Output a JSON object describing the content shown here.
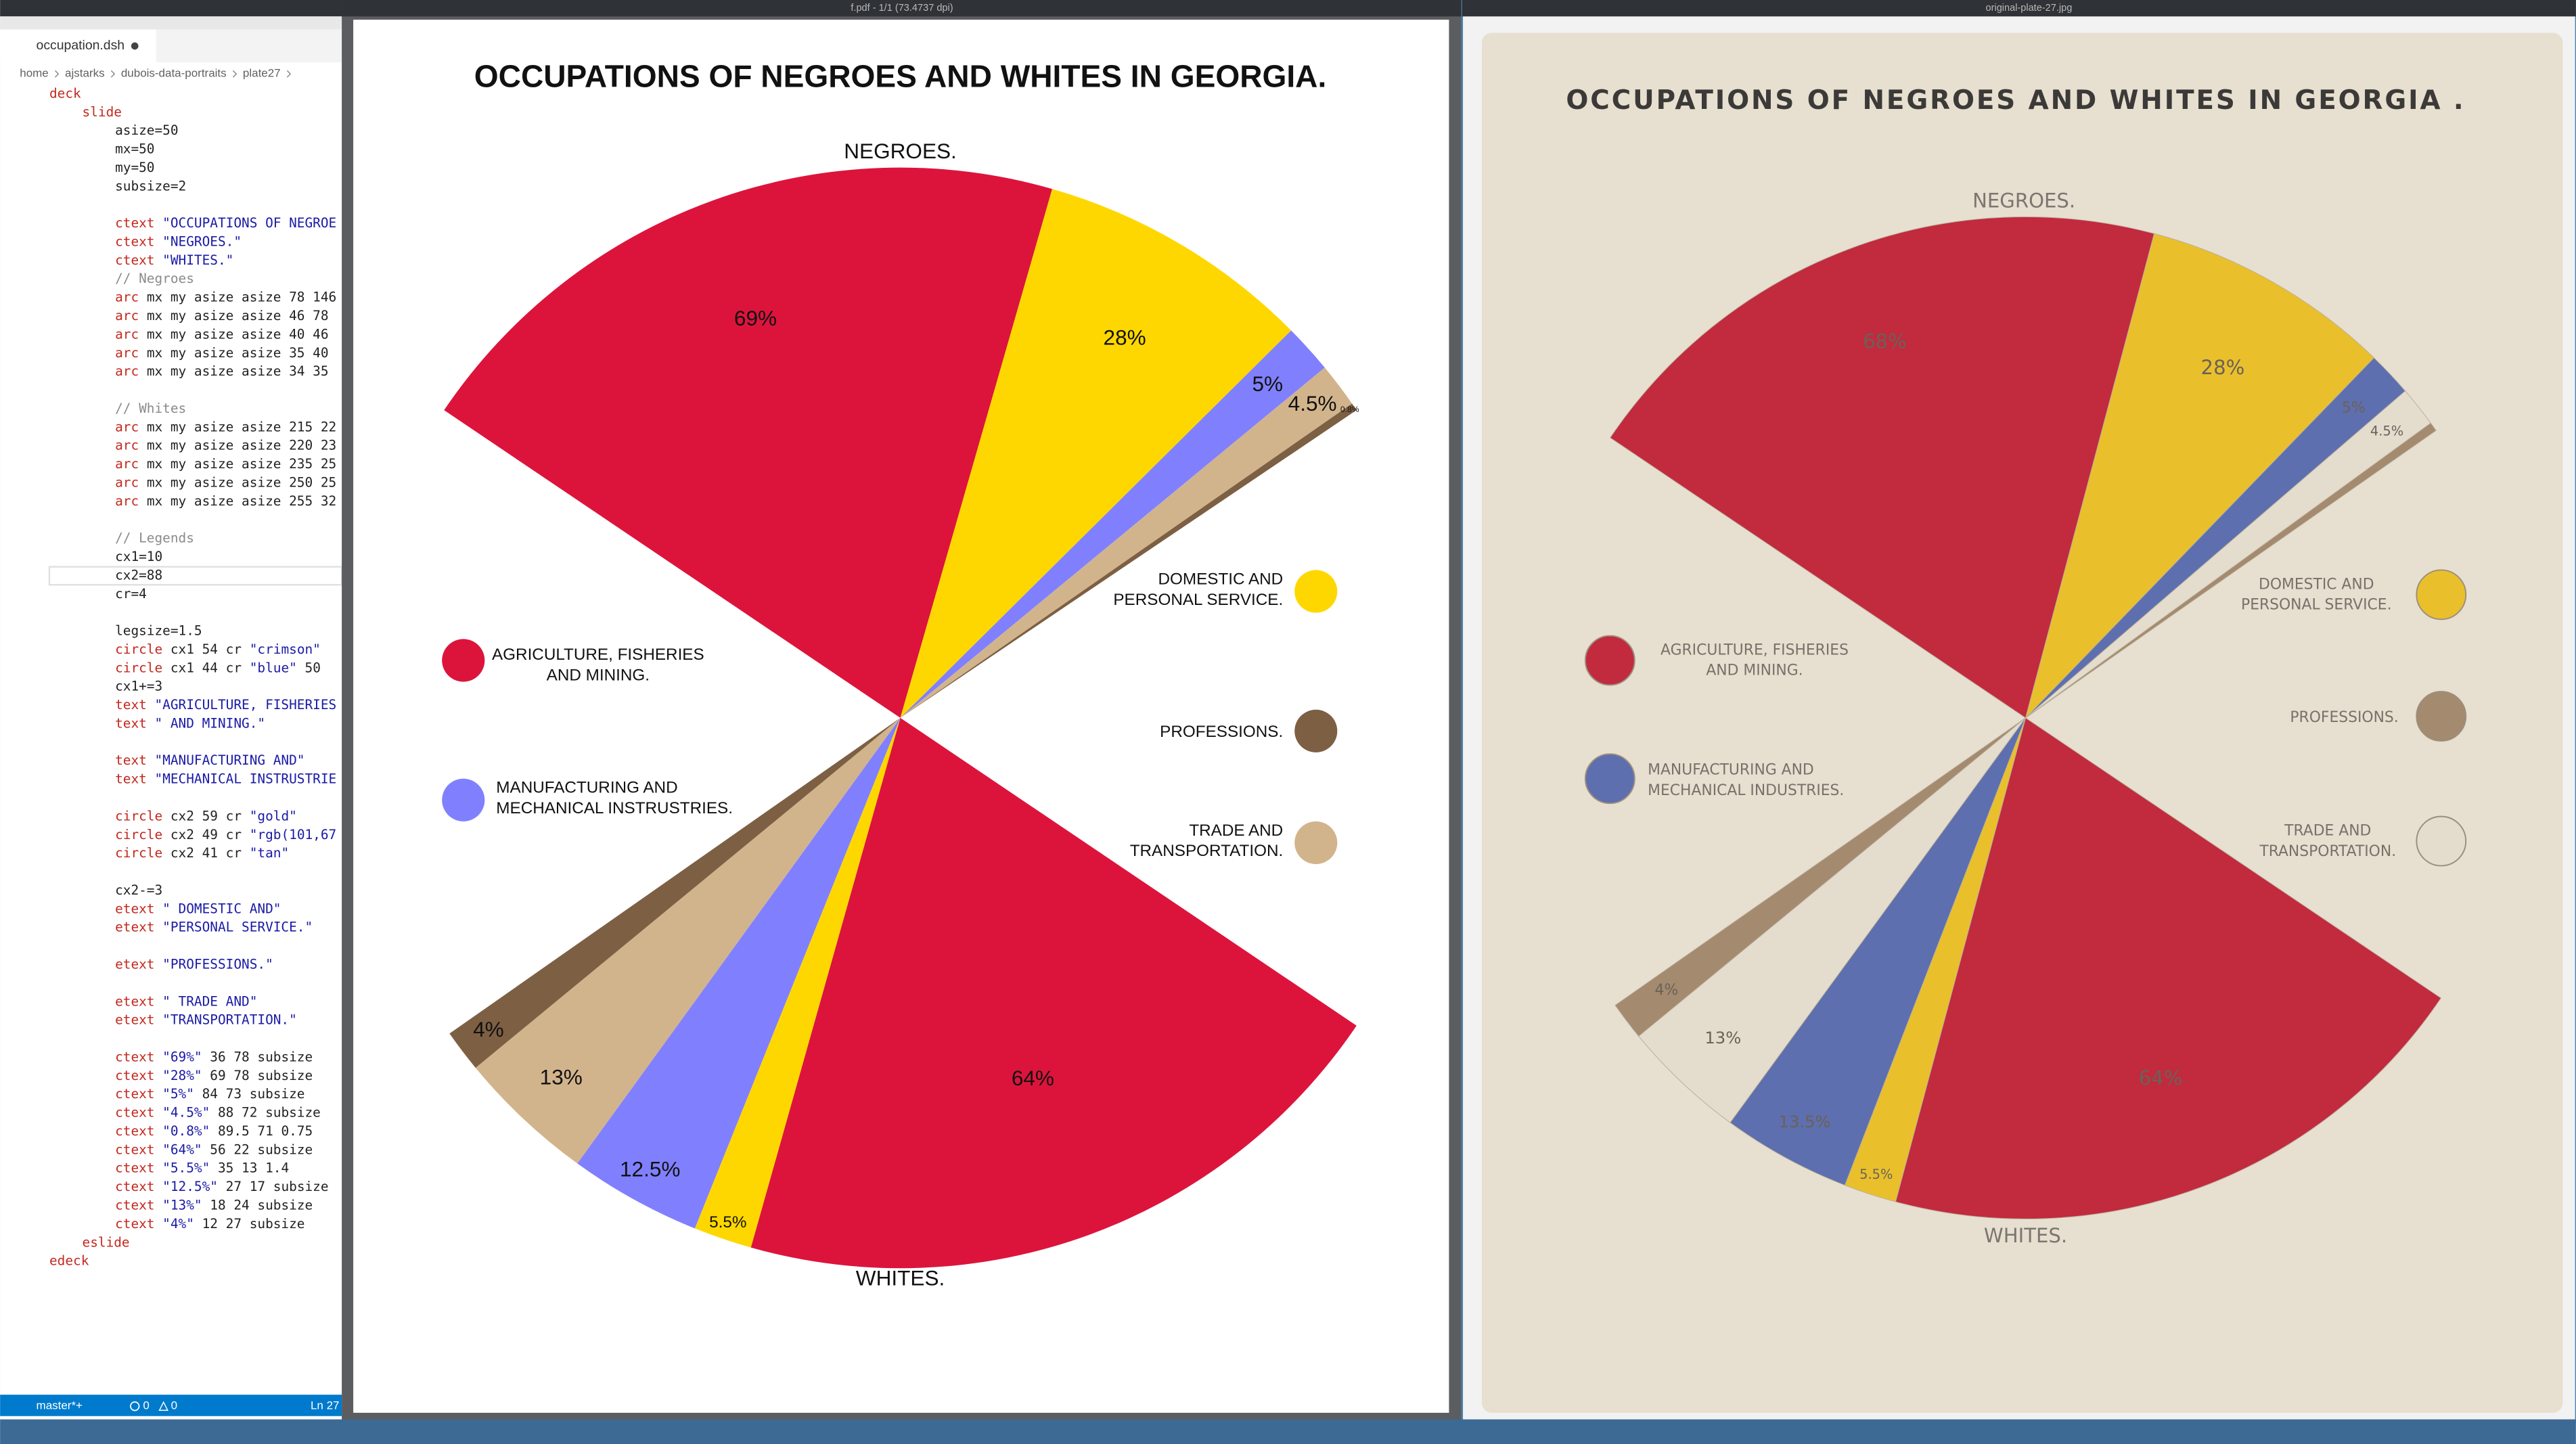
{
  "editor": {
    "tab": "occupation.dsh",
    "breadcrumb": [
      "home",
      "ajstarks",
      "dubois-data-portraits",
      "plate27"
    ],
    "code_blocks": [
      [
        "deck",
        "slide",
        "asize=50",
        "mx=50",
        "my=50",
        "subsize=2"
      ],
      [
        "ctext \"OCCUPATIONS OF NEGROE",
        "ctext \"NEGROES.\"",
        "ctext \"WHITES.\"",
        "// Negroes",
        "arc mx my asize asize 78 146",
        "arc mx my asize asize 46 78",
        "arc mx my asize asize 40 46",
        "arc mx my asize asize 35 40",
        "arc mx my asize asize 34 35"
      ],
      [
        "// Whites",
        "arc mx my asize asize 215 22",
        "arc mx my asize asize 220 23",
        "arc mx my asize asize 235 25",
        "arc mx my asize asize 250 25",
        "arc mx my asize asize 255 32"
      ],
      [
        "// Legends",
        "cx1=10",
        "cx2=88",
        "cr=4"
      ],
      [
        "legsize=1.5",
        "circle cx1 54 cr \"crimson\"",
        "circle cx1 44 cr \"blue\" 50",
        "cx1+=3",
        "text \"AGRICULTURE, FISHERIES",
        "text \"         AND MINING.\""
      ],
      [
        "text \"MANUFACTURING AND\"",
        "text \"MECHANICAL INSTRUSTRIE"
      ],
      [
        "circle cx2 59 cr \"gold\"",
        "circle cx2 49 cr \"rgb(101,67",
        "circle cx2 41 cr \"tan\""
      ],
      [
        "cx2-=3",
        "etext \" DOMESTIC AND\"",
        "etext \"PERSONAL SERVICE.\""
      ],
      [
        "etext \"PROFESSIONS.\""
      ],
      [
        "etext \"  TRADE AND\"",
        "etext \"TRANSPORTATION.\""
      ],
      [
        "ctext \"69%\"   36 78 subsize",
        "ctext \"28%\"   69 78 subsize",
        "ctext \"5%\"    84 73 subsize",
        "ctext \"4.5%\"  88 72 subsize",
        "ctext \"0.8%\"  89.5 71 0.75",
        "ctext \"64%\"   56 22 subsize",
        "ctext \"5.5%\"  35 13 1.4",
        "ctext \"12.5%\" 27 17 subsize",
        "ctext \"13%\"   18 24 subsize",
        "ctext \"4%\"    12 27 subsize",
        "eslide",
        "edeck"
      ]
    ],
    "status": {
      "branch": "master*+",
      "errors": 0,
      "warnings": 0,
      "position": "Ln 27"
    }
  },
  "pdf_viewer": {
    "title": "f.pdf - 1/1 (73.4737 dpi)"
  },
  "image_viewer": {
    "title": "original-plate-27.jpg"
  },
  "chart_data": [
    {
      "type": "pie",
      "title": "OCCUPATIONS OF NEGROES AND WHITES IN GEORGIA.",
      "categories": [
        [
          "AGRICULTURE, FISHERIES",
          "AND MINING."
        ],
        [
          "MANUFACTURING AND",
          "MECHANICAL INSTRUSTRIES."
        ],
        [
          "DOMESTIC AND",
          "PERSONAL SERVICE."
        ],
        [
          "PROFESSIONS."
        ],
        [
          "TRADE AND",
          "TRANSPORTATION."
        ]
      ],
      "colors": [
        "#dc143c",
        "#8080ff",
        "#ffd700",
        "#7d5f43",
        "#d2b48c"
      ],
      "series": [
        {
          "name": "NEGROES.",
          "values": [
            69,
            5,
            28,
            0.8,
            4.5
          ],
          "value_labels": [
            "69%",
            "5%",
            "28%",
            "0.8%",
            "4.5%"
          ]
        },
        {
          "name": "WHITES.",
          "values": [
            64,
            12.5,
            5.5,
            4,
            13
          ],
          "value_labels": [
            "64%",
            "12.5%",
            "5.5%",
            "4%",
            "13%"
          ]
        }
      ]
    },
    {
      "type": "pie",
      "title": "OCCUPATIONS OF NEGROES AND WHITES IN GEORGIA .",
      "categories": [
        [
          "AGRICULTURE, FISHERIES",
          "AND MINING."
        ],
        [
          "MANUFACTURING AND",
          "MECHANICAL INDUSTRIES."
        ],
        [
          "DOMESTIC AND",
          "PERSONAL SERVICE."
        ],
        [
          "PROFESSIONS."
        ],
        [
          "TRADE AND",
          "TRANSPORTATION."
        ]
      ],
      "colors": [
        "#c22a3e",
        "#5d6fae",
        "#e9c02c",
        "#a48a6e",
        "#e4ddce"
      ],
      "series": [
        {
          "name": "NEGROES.",
          "values": [
            68,
            5,
            28,
            1,
            4.5
          ],
          "value_labels": [
            "68%",
            "5%",
            "28%",
            null,
            "4.5%"
          ]
        },
        {
          "name": "WHITES.",
          "values": [
            64,
            13.5,
            5.5,
            4,
            13
          ],
          "value_labels": [
            "64%",
            "13.5%",
            "5.5%",
            "4%",
            "13%"
          ]
        }
      ]
    }
  ]
}
